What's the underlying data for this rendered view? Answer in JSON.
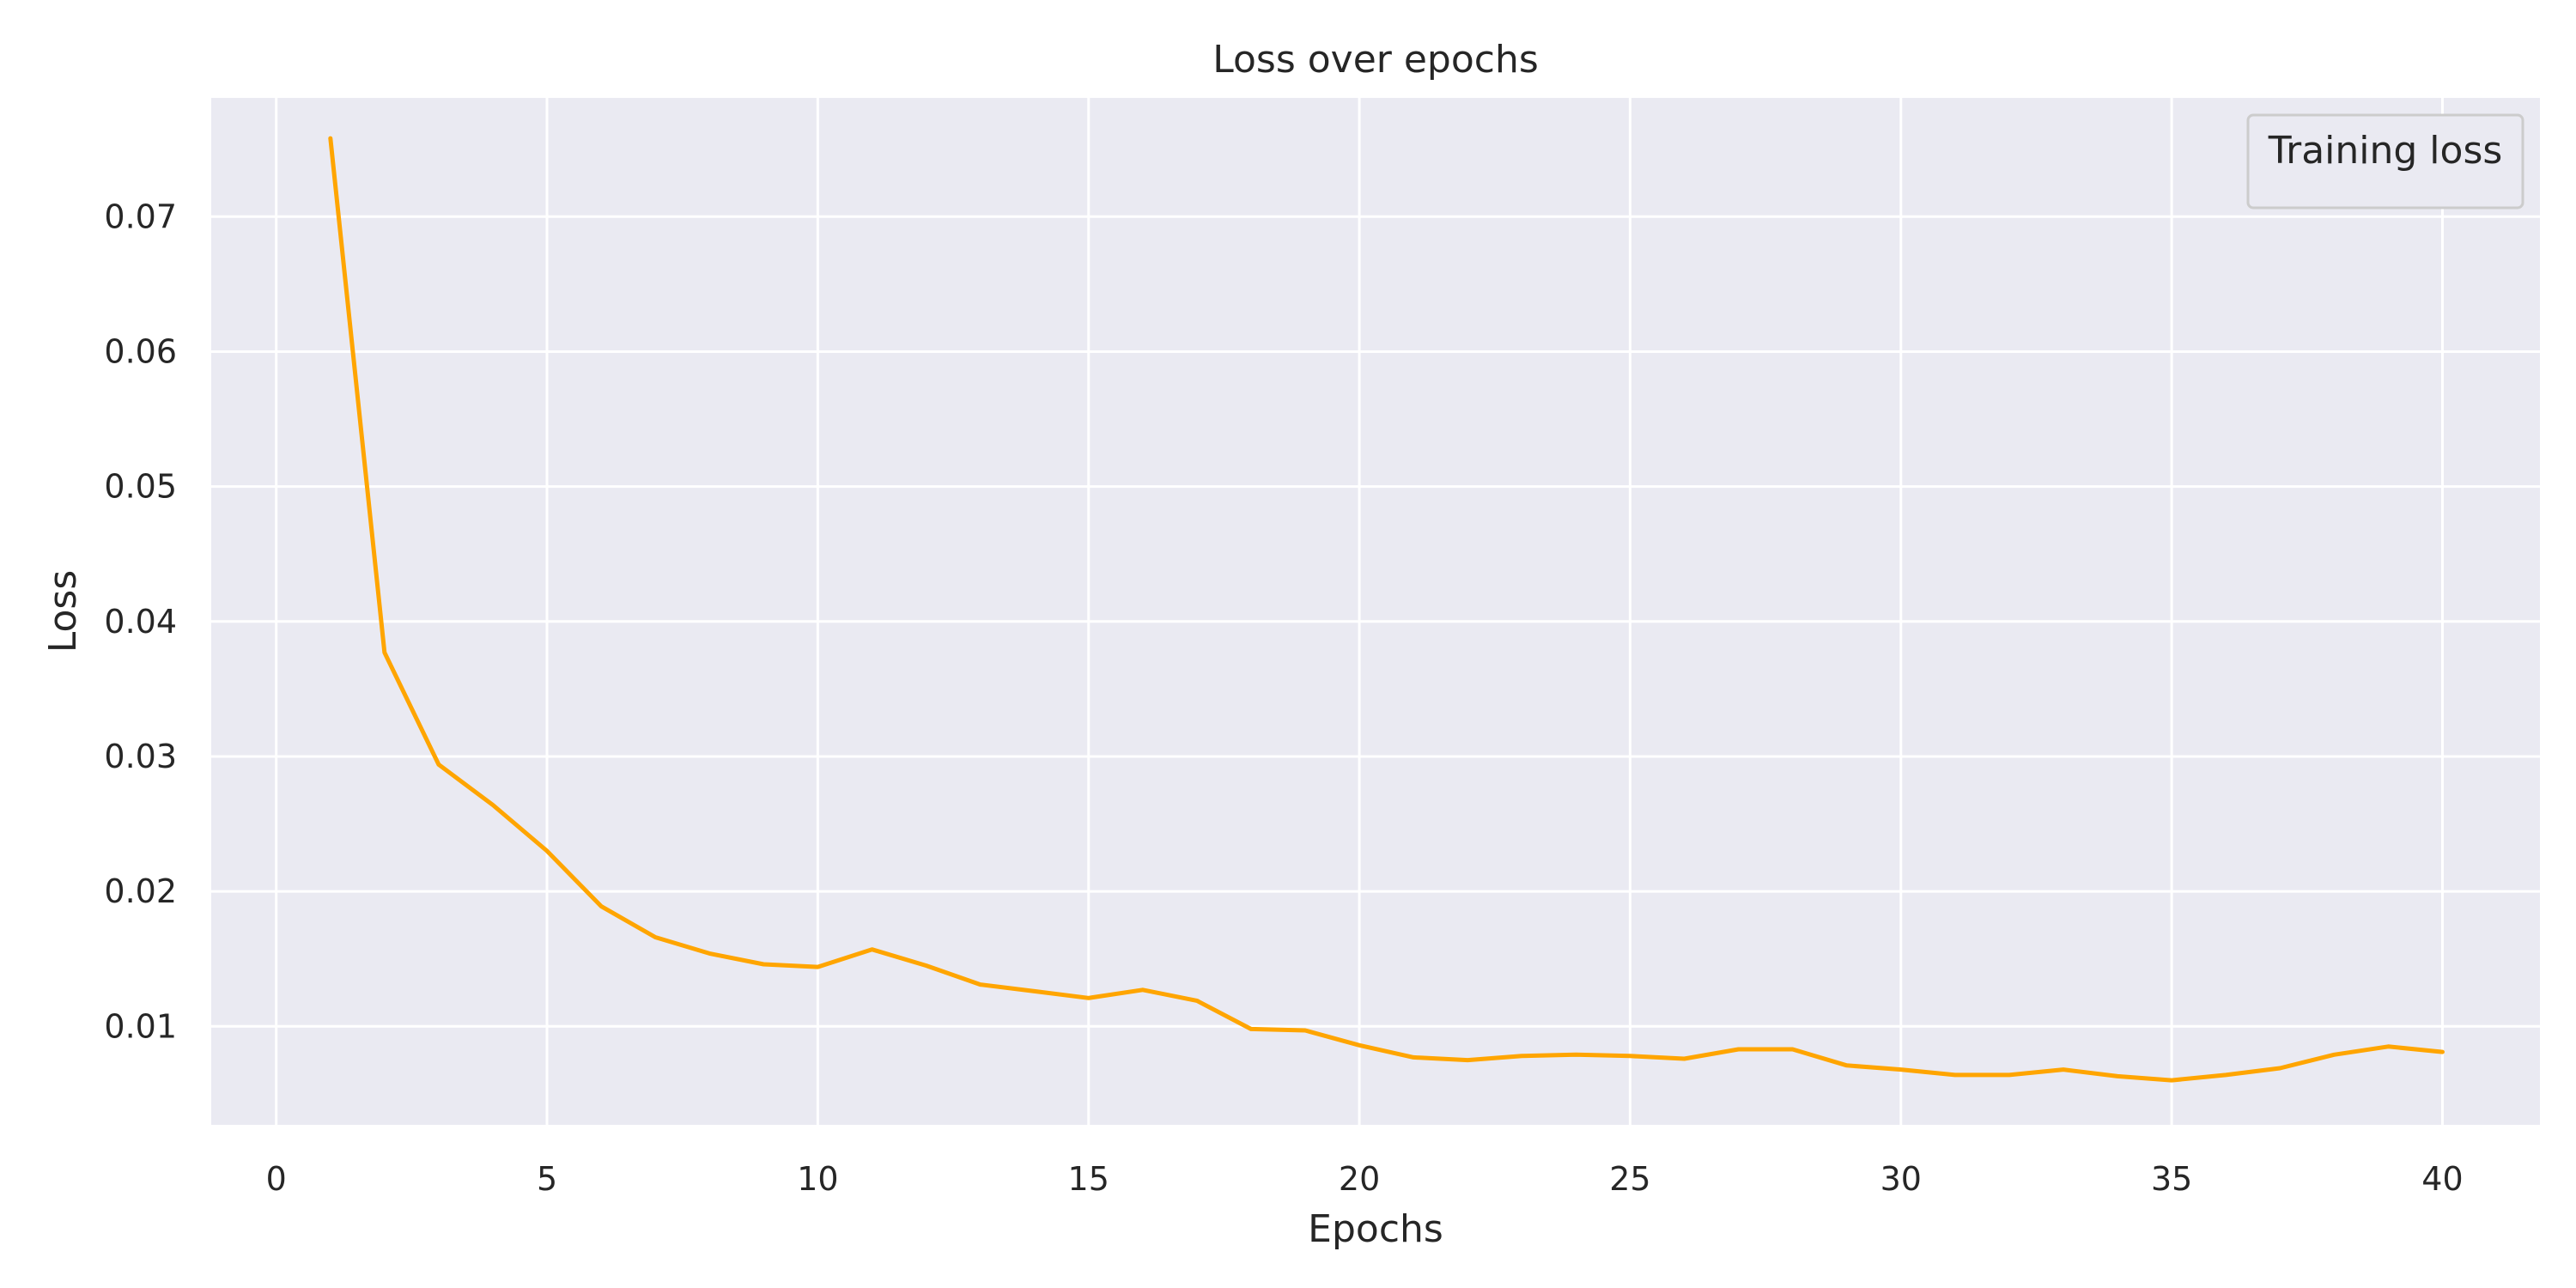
{
  "chart_data": {
    "type": "line",
    "title": "Loss over epochs",
    "xlabel": "Epochs",
    "ylabel": "Loss",
    "xlim": [
      -1.2,
      41.8
    ],
    "ylim": [
      0.0027,
      0.0788
    ],
    "xticks": [
      0,
      5,
      10,
      15,
      20,
      25,
      30,
      35,
      40
    ],
    "xtick_labels": [
      "0",
      "5",
      "10",
      "15",
      "20",
      "25",
      "30",
      "35",
      "40"
    ],
    "yticks": [
      0.01,
      0.02,
      0.03,
      0.04,
      0.05,
      0.06,
      0.07
    ],
    "ytick_labels": [
      "0.01",
      "0.02",
      "0.03",
      "0.04",
      "0.05",
      "0.06",
      "0.07"
    ],
    "grid": true,
    "legend_position": "top-right",
    "background_color": "#eaeaf2",
    "grid_color": "#ffffff",
    "series": [
      {
        "name": "Training loss",
        "color": "#ffa500",
        "x": [
          1,
          2,
          3,
          4,
          5,
          6,
          7,
          8,
          9,
          10,
          11,
          12,
          13,
          14,
          15,
          16,
          17,
          18,
          19,
          20,
          21,
          22,
          23,
          24,
          25,
          26,
          27,
          28,
          29,
          30,
          31,
          32,
          33,
          34,
          35,
          36,
          37,
          38,
          39,
          40
        ],
        "y": [
          0.0758,
          0.0377,
          0.0294,
          0.0264,
          0.023,
          0.0189,
          0.0166,
          0.0154,
          0.0146,
          0.0144,
          0.0157,
          0.0145,
          0.0131,
          0.0126,
          0.0121,
          0.0127,
          0.0119,
          0.0098,
          0.0097,
          0.0086,
          0.0077,
          0.0075,
          0.0078,
          0.0079,
          0.0078,
          0.0076,
          0.0083,
          0.0083,
          0.0071,
          0.0068,
          0.0064,
          0.0064,
          0.0068,
          0.0063,
          0.006,
          0.0064,
          0.0069,
          0.0079,
          0.0085,
          0.0081
        ]
      }
    ]
  }
}
